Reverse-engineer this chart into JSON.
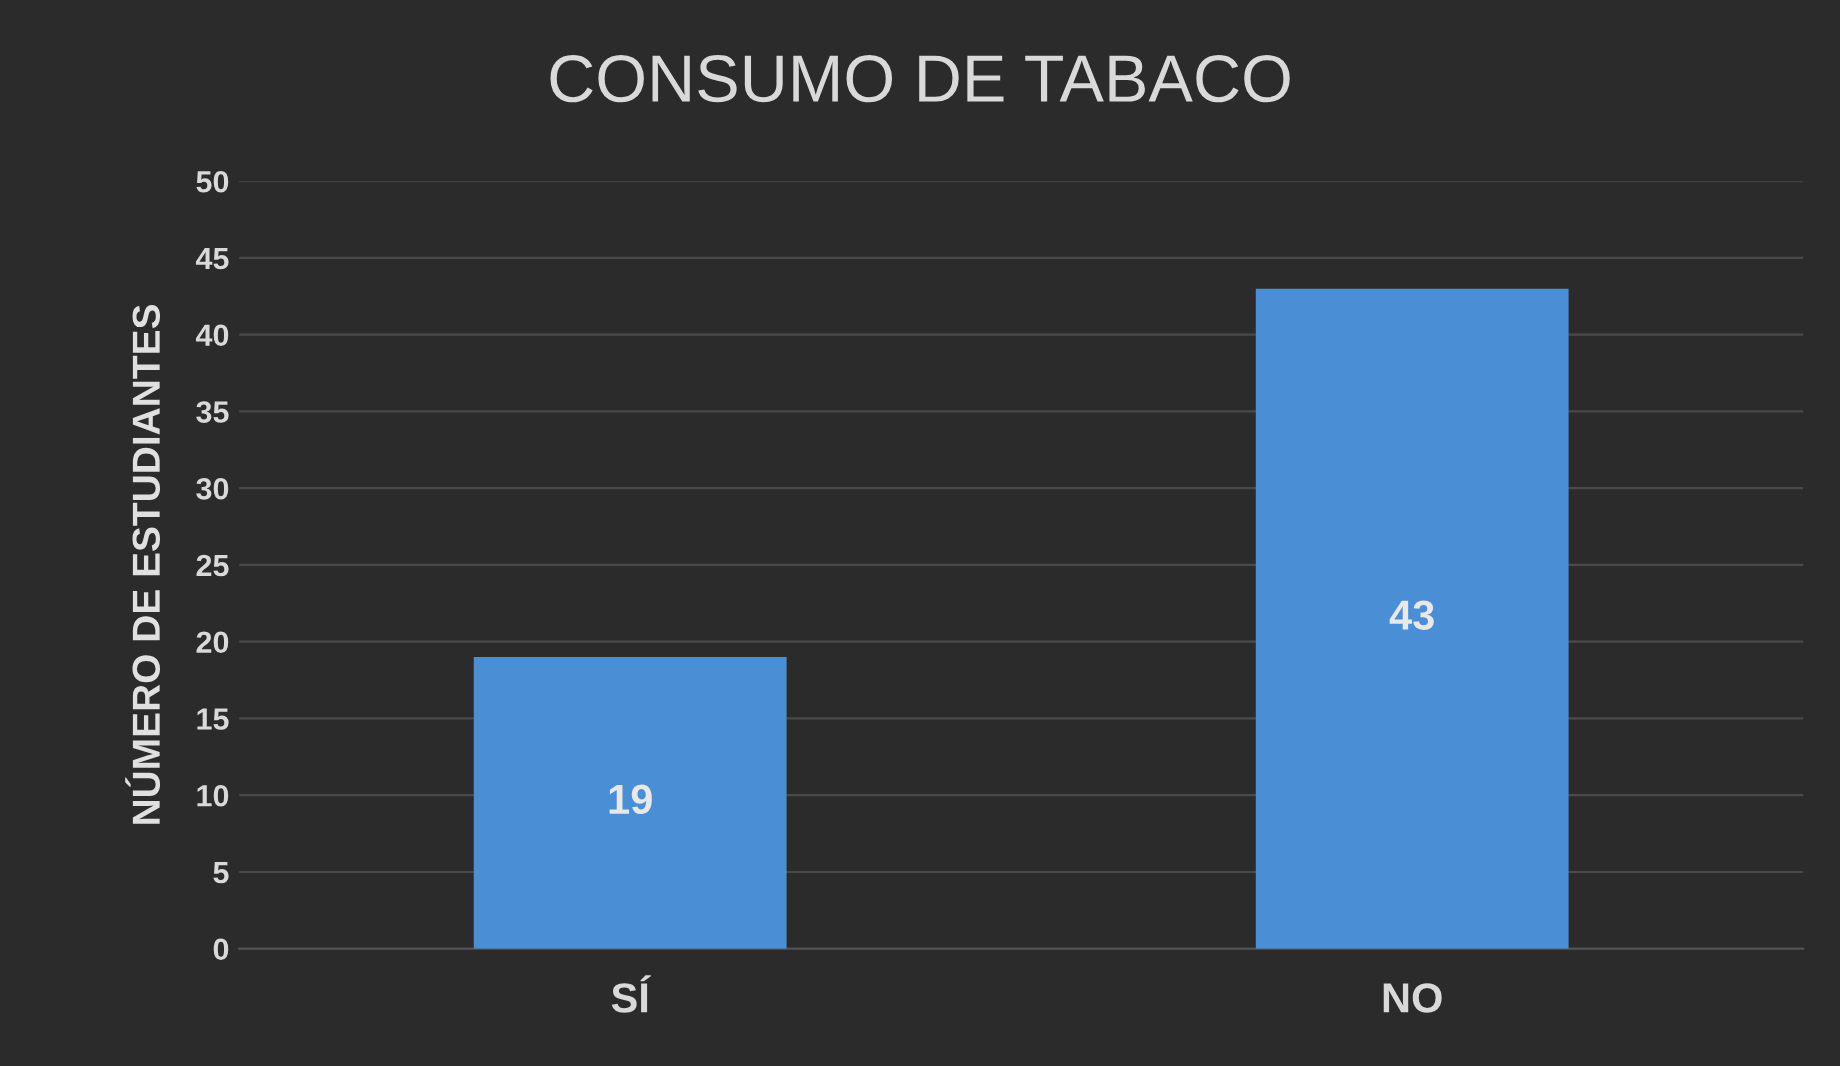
{
  "chart_data": {
    "type": "bar",
    "title": "CONSUMO DE TABACO",
    "ylabel": "NÚMERO DE ESTUDIANTES",
    "categories": [
      "SÍ",
      "NO"
    ],
    "values": [
      19,
      43
    ],
    "color": "#4a8fd6",
    "ylim": [
      0,
      50
    ],
    "yticks": [
      0,
      5,
      10,
      15,
      20,
      25,
      30,
      35,
      40,
      45,
      50
    ],
    "grid": "y",
    "data_labels": true
  }
}
